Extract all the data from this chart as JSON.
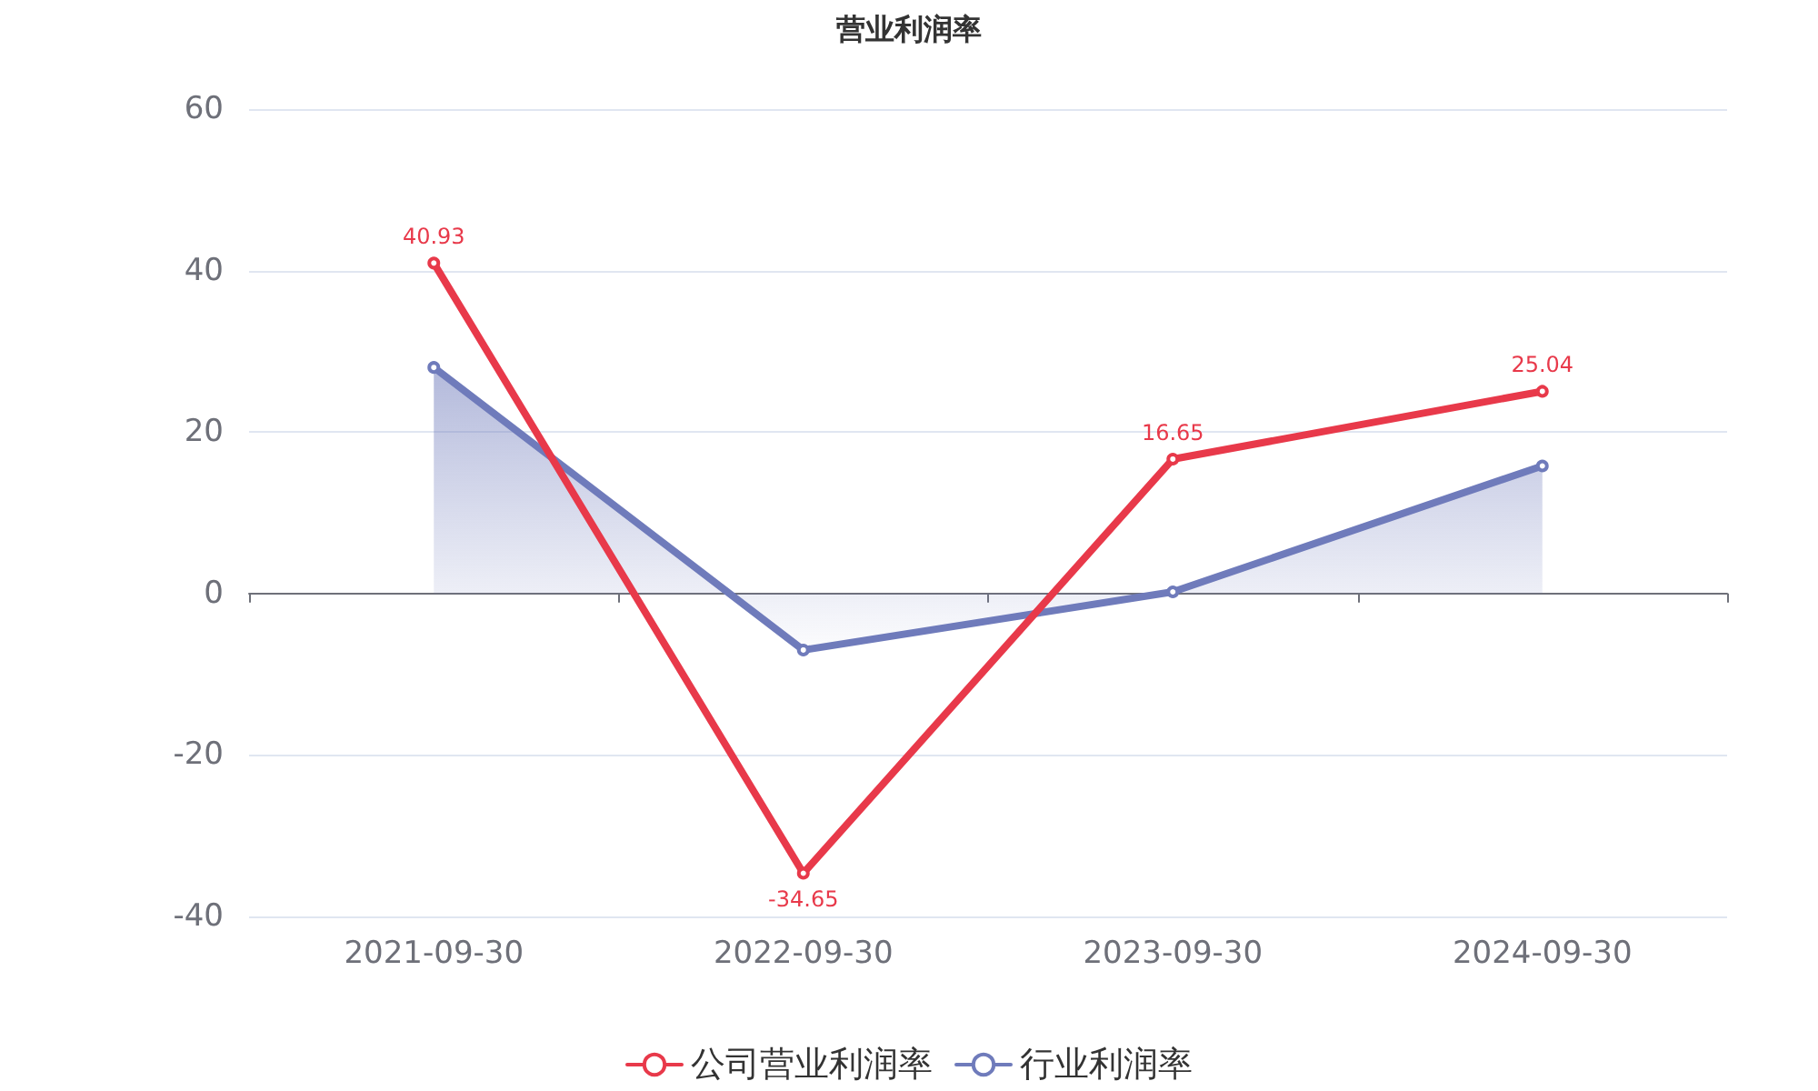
{
  "chart_data": {
    "type": "line",
    "title": "营业利润率",
    "categories": [
      "2021-09-30",
      "2022-09-30",
      "2023-09-30",
      "2024-09-30"
    ],
    "series": [
      {
        "name": "公司营业利润率",
        "type": "line",
        "color": "#e8394a",
        "values": [
          40.93,
          -34.65,
          16.65,
          25.04
        ],
        "value_labels": [
          "40.93",
          "-34.65",
          "16.65",
          "25.04"
        ]
      },
      {
        "name": "行业利润率",
        "type": "area",
        "color": "#6f7bbb",
        "values": [
          28.0,
          -7.0,
          0.2,
          15.8
        ]
      }
    ],
    "ylim": [
      -40,
      60
    ],
    "yticks": [
      -40,
      -20,
      0,
      20,
      40,
      60
    ],
    "grid": "y",
    "legend": "bottom",
    "marker": "circle"
  }
}
